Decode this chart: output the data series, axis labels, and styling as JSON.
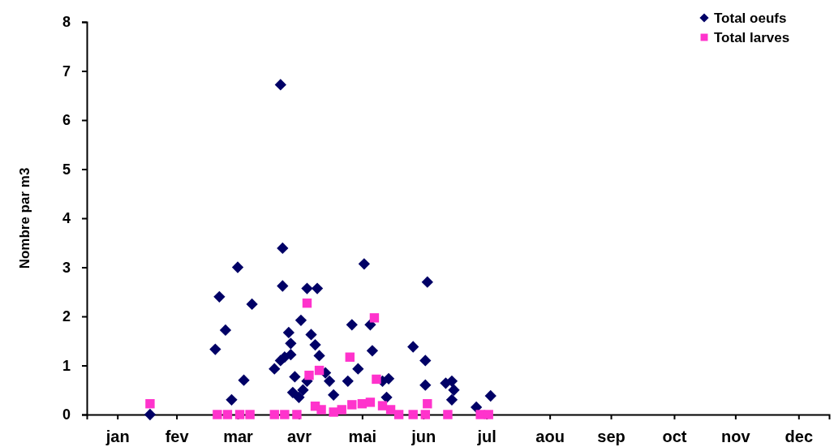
{
  "chart_data": {
    "type": "scatter",
    "ylabel": "Nombre par m3",
    "ylim": [
      0,
      8
    ],
    "yticks": [
      0,
      1,
      2,
      3,
      4,
      5,
      6,
      7,
      8
    ],
    "xlim": [
      "--01-01",
      "--12-31"
    ],
    "xticks": [
      {
        "value": "--01-16",
        "label": "jan"
      },
      {
        "value": "--02-14",
        "label": "fev"
      },
      {
        "value": "--03-16",
        "label": "mar"
      },
      {
        "value": "--04-15",
        "label": "avr"
      },
      {
        "value": "--05-16",
        "label": "mai"
      },
      {
        "value": "--06-15",
        "label": "jun"
      },
      {
        "value": "--07-16",
        "label": "jul"
      },
      {
        "value": "--08-16",
        "label": "aou"
      },
      {
        "value": "--09-15",
        "label": "sep"
      },
      {
        "value": "--10-16",
        "label": "oct"
      },
      {
        "value": "--11-15",
        "label": "nov"
      },
      {
        "value": "--12-16",
        "label": "dec"
      }
    ],
    "grid": false,
    "legend": "top right",
    "series": [
      {
        "name": "Total oeufs",
        "color": "#000066",
        "marker": "diamond",
        "x": [
          "--02-01",
          "--03-05",
          "--03-07",
          "--03-10",
          "--03-13",
          "--03-16",
          "--03-19",
          "--03-23",
          "--04-06",
          "--04-07",
          "--04-07",
          "--04-03",
          "--04-06",
          "--04-08",
          "--04-10",
          "--04-11",
          "--04-11",
          "--04-16",
          "--04-19",
          "--04-24",
          "--04-13",
          "--04-12",
          "--04-15",
          "--04-17",
          "--04-19",
          "--04-21",
          "--04-23",
          "--04-25",
          "--04-28",
          "--04-30",
          "--05-02",
          "--05-09",
          "--05-11",
          "--05-14",
          "--05-17",
          "--05-20",
          "--05-21",
          "--05-26",
          "--05-29",
          "--05-28",
          "--06-10",
          "--06-16",
          "--06-16",
          "--06-17",
          "--06-26",
          "--06-29",
          "--06-29",
          "--06-30",
          "--07-11",
          "--07-18"
        ],
        "values": [
          0,
          1.33,
          2.4,
          1.72,
          0.3,
          3.0,
          0.7,
          2.25,
          6.72,
          3.39,
          2.62,
          0.93,
          1.1,
          1.17,
          1.67,
          1.45,
          1.22,
          1.92,
          2.57,
          2.57,
          0.77,
          0.45,
          0.35,
          0.5,
          0.68,
          1.63,
          1.42,
          1.2,
          0.85,
          0.68,
          0.4,
          0.68,
          1.83,
          0.93,
          3.07,
          1.83,
          1.3,
          0.68,
          0.73,
          0.35,
          1.38,
          1.1,
          0.6,
          2.7,
          0.64,
          0.68,
          0.3,
          0.5,
          0.15,
          0.38
        ]
      },
      {
        "name": "Total larves",
        "color": "#ff33cc",
        "marker": "square",
        "x": [
          "--02-01",
          "--03-06",
          "--03-11",
          "--03-17",
          "--03-22",
          "--04-03",
          "--04-08",
          "--04-14",
          "--04-19",
          "--04-20",
          "--04-25",
          "--04-23",
          "--04-26",
          "--05-02",
          "--05-06",
          "--05-10",
          "--05-11",
          "--05-16",
          "--05-22",
          "--05-23",
          "--05-20",
          "--05-26",
          "--05-30",
          "--06-03",
          "--06-10",
          "--06-17",
          "--06-16",
          "--06-27",
          "--07-13",
          "--07-17"
        ],
        "values": [
          0.22,
          0,
          0,
          0,
          0,
          0,
          0,
          0,
          2.27,
          0.8,
          0.9,
          0.17,
          0.1,
          0.05,
          0.1,
          1.17,
          0.2,
          0.22,
          1.97,
          0.72,
          0.25,
          0.18,
          0.1,
          0,
          0,
          0.22,
          0,
          0,
          0,
          0
        ]
      }
    ]
  }
}
